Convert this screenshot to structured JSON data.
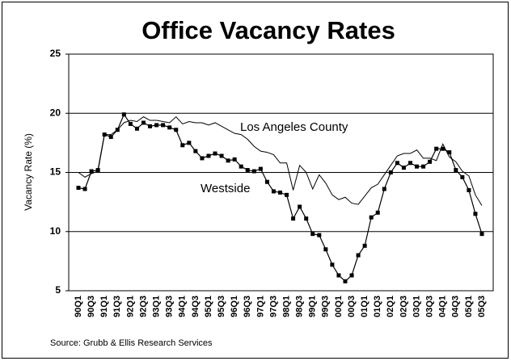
{
  "chart_data": {
    "type": "line",
    "title": "Office Vacancy Rates",
    "y_label": "Vacancy Rate (%)",
    "source": "Source: Grubb & Ellis Research Services",
    "categories": [
      "90Q1",
      null,
      "90Q3",
      null,
      "91Q1",
      null,
      "91Q3",
      null,
      "92Q1",
      null,
      "92Q3",
      null,
      "93Q1",
      null,
      "93Q3",
      null,
      "94Q1",
      null,
      "94Q3",
      null,
      "95Q1",
      null,
      "95Q3",
      null,
      "96Q1",
      null,
      "96Q3",
      null,
      "97Q1",
      null,
      "97Q3",
      null,
      "98Q1",
      null,
      "98Q3",
      null,
      "99Q1",
      null,
      "99Q3",
      null,
      "00Q1",
      null,
      "00Q3",
      null,
      "01Q1",
      null,
      "01Q3",
      null,
      "02Q1",
      null,
      "02Q3",
      null,
      "03Q1",
      null,
      "03Q3",
      null,
      "04Q1",
      null,
      "04Q3",
      null,
      "05Q1",
      null,
      "05Q3"
    ],
    "series": [
      {
        "name": "Los Angeles County",
        "color": "#000000",
        "marker": false,
        "values": [
          15.0,
          14.6,
          14.9,
          15.1,
          18.2,
          18.2,
          18.6,
          19.2,
          19.4,
          19.3,
          19.7,
          19.4,
          19.4,
          19.3,
          19.2,
          19.7,
          19.1,
          19.3,
          19.2,
          19.2,
          19.0,
          19.2,
          18.9,
          18.6,
          18.3,
          18.2,
          17.8,
          17.2,
          16.8,
          16.7,
          16.5,
          15.8,
          15.8,
          13.5,
          15.6,
          15.0,
          13.6,
          14.8,
          14.1,
          13.1,
          12.7,
          12.9,
          12.4,
          12.3,
          13.0,
          13.7,
          14.0,
          14.8,
          15.6,
          16.4,
          16.6,
          16.6,
          16.9,
          16.2,
          16.2,
          16.0,
          17.4,
          16.3,
          15.9,
          15.1,
          14.7,
          13.1,
          12.2
        ]
      },
      {
        "name": "Westside",
        "color": "#000000",
        "marker": true,
        "values": [
          13.7,
          13.6,
          15.1,
          15.2,
          18.2,
          18.0,
          18.6,
          19.9,
          19.1,
          18.7,
          19.2,
          18.9,
          19.0,
          19.0,
          18.8,
          18.6,
          17.3,
          17.5,
          16.8,
          16.2,
          16.4,
          16.6,
          16.4,
          16.0,
          16.1,
          15.5,
          15.2,
          15.1,
          15.3,
          14.2,
          13.4,
          13.3,
          13.1,
          11.1,
          12.1,
          11.1,
          9.8,
          9.7,
          8.5,
          7.2,
          6.3,
          5.8,
          6.3,
          8.0,
          8.8,
          11.2,
          11.6,
          13.6,
          15.0,
          15.8,
          15.4,
          15.8,
          15.5,
          15.5,
          15.9,
          17.0,
          17.0,
          16.7,
          15.2,
          14.6,
          13.5,
          11.5,
          9.8
        ]
      }
    ],
    "ylim": [
      5,
      25
    ],
    "yticks": [
      5,
      10,
      15,
      20,
      25
    ],
    "grid": true
  }
}
